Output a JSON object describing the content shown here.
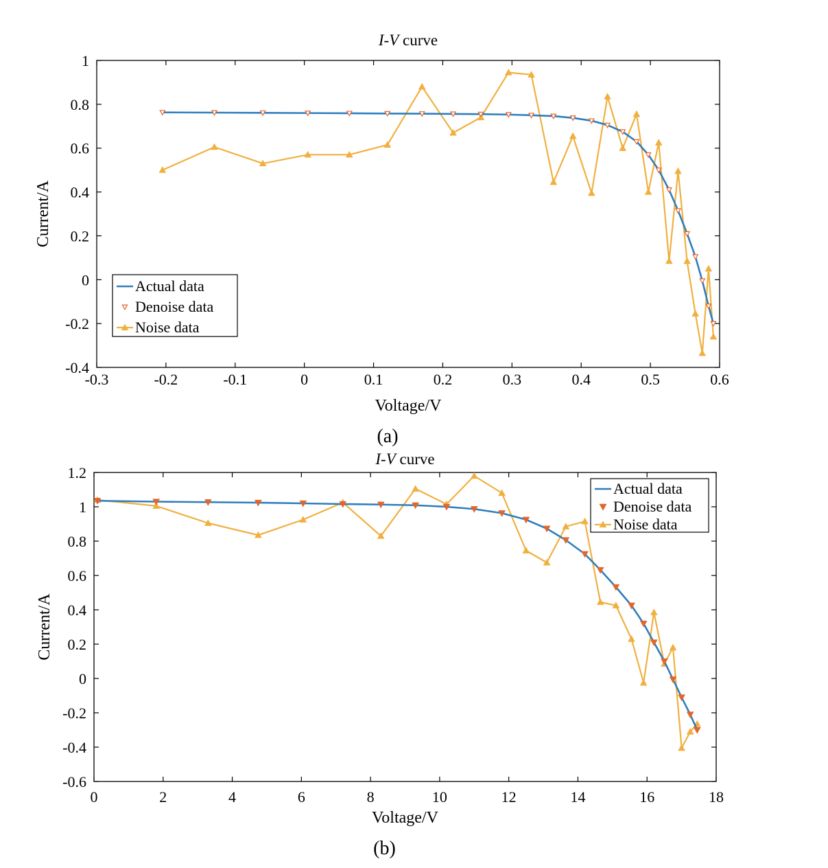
{
  "chart_data": [
    {
      "type": "line",
      "panel_label": "(a)",
      "title_italic": "I-V",
      "title_rest": " curve",
      "xlabel": "Voltage/V",
      "ylabel": "Current/A",
      "xlim": [
        -0.3,
        0.6
      ],
      "ylim": [
        -0.4,
        1
      ],
      "xticks": [
        -0.3,
        -0.2,
        -0.1,
        0,
        0.1,
        0.2,
        0.3,
        0.4,
        0.5,
        0.6
      ],
      "yticks": [
        -0.4,
        -0.2,
        0,
        0.2,
        0.4,
        0.6,
        0.8,
        1
      ],
      "xtick_labels": [
        "-0.3",
        "-0.2",
        "-0.1",
        "0",
        "0.1",
        "0.2",
        "0.3",
        "0.4",
        "0.5",
        "0.6"
      ],
      "ytick_labels": [
        "-0.4",
        "-0.2",
        "0",
        "0.2",
        "0.4",
        "0.6",
        "0.8",
        "1"
      ],
      "grid": false,
      "legend_position": "bottom-left",
      "marker_style": "hollow",
      "colors": {
        "actual": "#2e7ebc",
        "denoise": "#e2652e",
        "noise": "#f0b040"
      },
      "series": [
        {
          "name": "Actual data",
          "x": [
            -0.205,
            -0.13,
            -0.06,
            0.005,
            0.065,
            0.12,
            0.17,
            0.215,
            0.255,
            0.295,
            0.328,
            0.36,
            0.388,
            0.415,
            0.438,
            0.46,
            0.48,
            0.497,
            0.512,
            0.527,
            0.54,
            0.553,
            0.565,
            0.575,
            0.584,
            0.591
          ],
          "y": [
            0.763,
            0.762,
            0.761,
            0.76,
            0.759,
            0.758,
            0.757,
            0.756,
            0.755,
            0.753,
            0.75,
            0.746,
            0.738,
            0.725,
            0.705,
            0.675,
            0.63,
            0.57,
            0.5,
            0.41,
            0.315,
            0.21,
            0.105,
            -0.005,
            -0.12,
            -0.2
          ]
        },
        {
          "name": "Denoise data",
          "x": [
            -0.205,
            -0.13,
            -0.06,
            0.005,
            0.065,
            0.12,
            0.17,
            0.215,
            0.255,
            0.295,
            0.328,
            0.36,
            0.388,
            0.415,
            0.438,
            0.46,
            0.48,
            0.497,
            0.512,
            0.527,
            0.54,
            0.553,
            0.565,
            0.575,
            0.584,
            0.591
          ],
          "y": [
            0.763,
            0.762,
            0.761,
            0.76,
            0.759,
            0.758,
            0.757,
            0.756,
            0.755,
            0.753,
            0.75,
            0.746,
            0.738,
            0.725,
            0.705,
            0.675,
            0.63,
            0.57,
            0.5,
            0.41,
            0.315,
            0.21,
            0.105,
            -0.005,
            -0.12,
            -0.2
          ]
        },
        {
          "name": "Noise data",
          "x": [
            -0.205,
            -0.13,
            -0.06,
            0.005,
            0.065,
            0.12,
            0.17,
            0.215,
            0.255,
            0.295,
            0.328,
            0.36,
            0.388,
            0.415,
            0.438,
            0.46,
            0.48,
            0.497,
            0.512,
            0.527,
            0.54,
            0.553,
            0.565,
            0.575,
            0.584,
            0.591
          ],
          "y": [
            0.5,
            0.605,
            0.53,
            0.57,
            0.57,
            0.615,
            0.88,
            0.67,
            0.74,
            0.945,
            0.935,
            0.445,
            0.655,
            0.395,
            0.835,
            0.6,
            0.755,
            0.4,
            0.625,
            0.085,
            0.495,
            0.085,
            -0.155,
            -0.335,
            0.05,
            -0.26
          ]
        }
      ]
    },
    {
      "type": "line",
      "panel_label": "(b)",
      "title_italic": "I-V",
      "title_rest": " curve",
      "xlabel": "Voltage/V",
      "ylabel": "Current/A",
      "xlim": [
        0,
        18
      ],
      "ylim": [
        -0.6,
        1.2
      ],
      "xticks": [
        0,
        2,
        4,
        6,
        8,
        10,
        12,
        14,
        16,
        18
      ],
      "yticks": [
        -0.6,
        -0.4,
        -0.2,
        0,
        0.2,
        0.4,
        0.6,
        0.8,
        1,
        1.2
      ],
      "xtick_labels": [
        "0",
        "2",
        "4",
        "6",
        "8",
        "10",
        "12",
        "14",
        "16",
        "18"
      ],
      "ytick_labels": [
        "-0.6",
        "-0.4",
        "-0.2",
        "0",
        "0.2",
        "0.4",
        "0.6",
        "0.8",
        "1",
        "1.2"
      ],
      "grid": false,
      "legend_position": "top-right",
      "marker_style": "filled",
      "colors": {
        "actual": "#2e7ebc",
        "denoise": "#e2652e",
        "noise": "#f0b040"
      },
      "series": [
        {
          "name": "Actual data",
          "x": [
            0.1,
            1.8,
            3.3,
            4.75,
            6.05,
            7.2,
            8.3,
            9.3,
            10.2,
            11.0,
            11.8,
            12.5,
            13.1,
            13.65,
            14.2,
            14.65,
            15.1,
            15.55,
            15.9,
            16.2,
            16.5,
            16.75,
            17.0,
            17.25,
            17.45
          ],
          "y": [
            1.035,
            1.03,
            1.027,
            1.024,
            1.02,
            1.016,
            1.013,
            1.009,
            1.0,
            0.987,
            0.963,
            0.925,
            0.873,
            0.806,
            0.725,
            0.632,
            0.532,
            0.425,
            0.32,
            0.21,
            0.1,
            -0.005,
            -0.11,
            -0.21,
            -0.3
          ]
        },
        {
          "name": "Denoise data",
          "x": [
            0.1,
            1.8,
            3.3,
            4.75,
            6.05,
            7.2,
            8.3,
            9.3,
            10.2,
            11.0,
            11.8,
            12.5,
            13.1,
            13.65,
            14.2,
            14.65,
            15.1,
            15.55,
            15.9,
            16.2,
            16.5,
            16.75,
            17.0,
            17.25,
            17.45
          ],
          "y": [
            1.035,
            1.03,
            1.027,
            1.024,
            1.02,
            1.016,
            1.013,
            1.009,
            1.0,
            0.987,
            0.963,
            0.925,
            0.873,
            0.806,
            0.725,
            0.632,
            0.532,
            0.425,
            0.32,
            0.21,
            0.1,
            -0.005,
            -0.11,
            -0.21,
            -0.3
          ]
        },
        {
          "name": "Noise data",
          "x": [
            0.1,
            1.8,
            3.3,
            4.75,
            6.05,
            7.2,
            8.3,
            9.3,
            10.2,
            11.0,
            11.8,
            12.5,
            13.1,
            13.65,
            14.2,
            14.65,
            15.1,
            15.55,
            15.9,
            16.2,
            16.5,
            16.75,
            17.0,
            17.25,
            17.45
          ],
          "y": [
            1.04,
            1.005,
            0.905,
            0.835,
            0.925,
            1.025,
            0.83,
            1.105,
            1.015,
            1.18,
            1.08,
            0.745,
            0.675,
            0.885,
            0.915,
            0.445,
            0.425,
            0.23,
            -0.025,
            0.385,
            0.085,
            0.18,
            -0.405,
            -0.31,
            -0.265
          ]
        }
      ]
    }
  ]
}
